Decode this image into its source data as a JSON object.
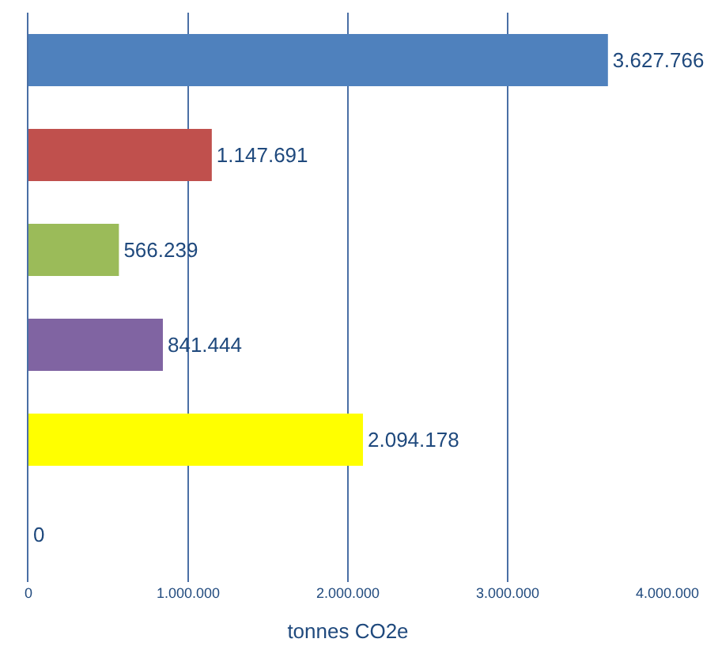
{
  "chart_data": {
    "type": "bar",
    "orientation": "horizontal",
    "xlabel": "tonnes CO2e",
    "categories": [
      null,
      null,
      null,
      null,
      null,
      null
    ],
    "values": [
      3627766,
      1147691,
      566239,
      841444,
      2094178,
      0
    ],
    "colors": [
      "#4f81bd",
      "#c0504d",
      "#9bbb59",
      "#8064a2",
      "#ffff00",
      "#4bacc6"
    ],
    "value_labels": [
      "3.627.766",
      "1.147.691",
      "566.239",
      "841.444",
      "2.094.178",
      "0"
    ],
    "xlim": [
      0,
      4000000
    ],
    "xticks": [
      {
        "value": 0,
        "label": "0"
      },
      {
        "value": 1000000,
        "label": "1.000.000"
      },
      {
        "value": 2000000,
        "label": "2.000.000"
      },
      {
        "value": 3000000,
        "label": "3.000.000"
      },
      {
        "value": 4000000,
        "label": "4.000.000"
      }
    ],
    "grid": "x",
    "legend": false
  }
}
